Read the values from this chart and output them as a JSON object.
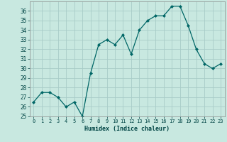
{
  "x": [
    0,
    1,
    2,
    3,
    4,
    5,
    6,
    7,
    8,
    9,
    10,
    11,
    12,
    13,
    14,
    15,
    16,
    17,
    18,
    19,
    20,
    21,
    22,
    23
  ],
  "y": [
    26.5,
    27.5,
    27.5,
    27.0,
    26.0,
    26.5,
    25.0,
    29.5,
    32.5,
    33.0,
    32.5,
    33.5,
    31.5,
    34.0,
    35.0,
    35.5,
    35.5,
    36.5,
    36.5,
    34.5,
    32.0,
    30.5,
    30.0,
    30.5
  ],
  "xlabel": "Humidex (Indice chaleur)",
  "bg_color": "#c8e8e0",
  "grid_color": "#a8ccc8",
  "line_color": "#006666",
  "marker_color": "#006666",
  "ylim": [
    25,
    37
  ],
  "xlim": [
    -0.5,
    23.5
  ],
  "yticks": [
    25,
    26,
    27,
    28,
    29,
    30,
    31,
    32,
    33,
    34,
    35,
    36
  ],
  "xticks": [
    0,
    1,
    2,
    3,
    4,
    5,
    6,
    7,
    8,
    9,
    10,
    11,
    12,
    13,
    14,
    15,
    16,
    17,
    18,
    19,
    20,
    21,
    22,
    23
  ]
}
